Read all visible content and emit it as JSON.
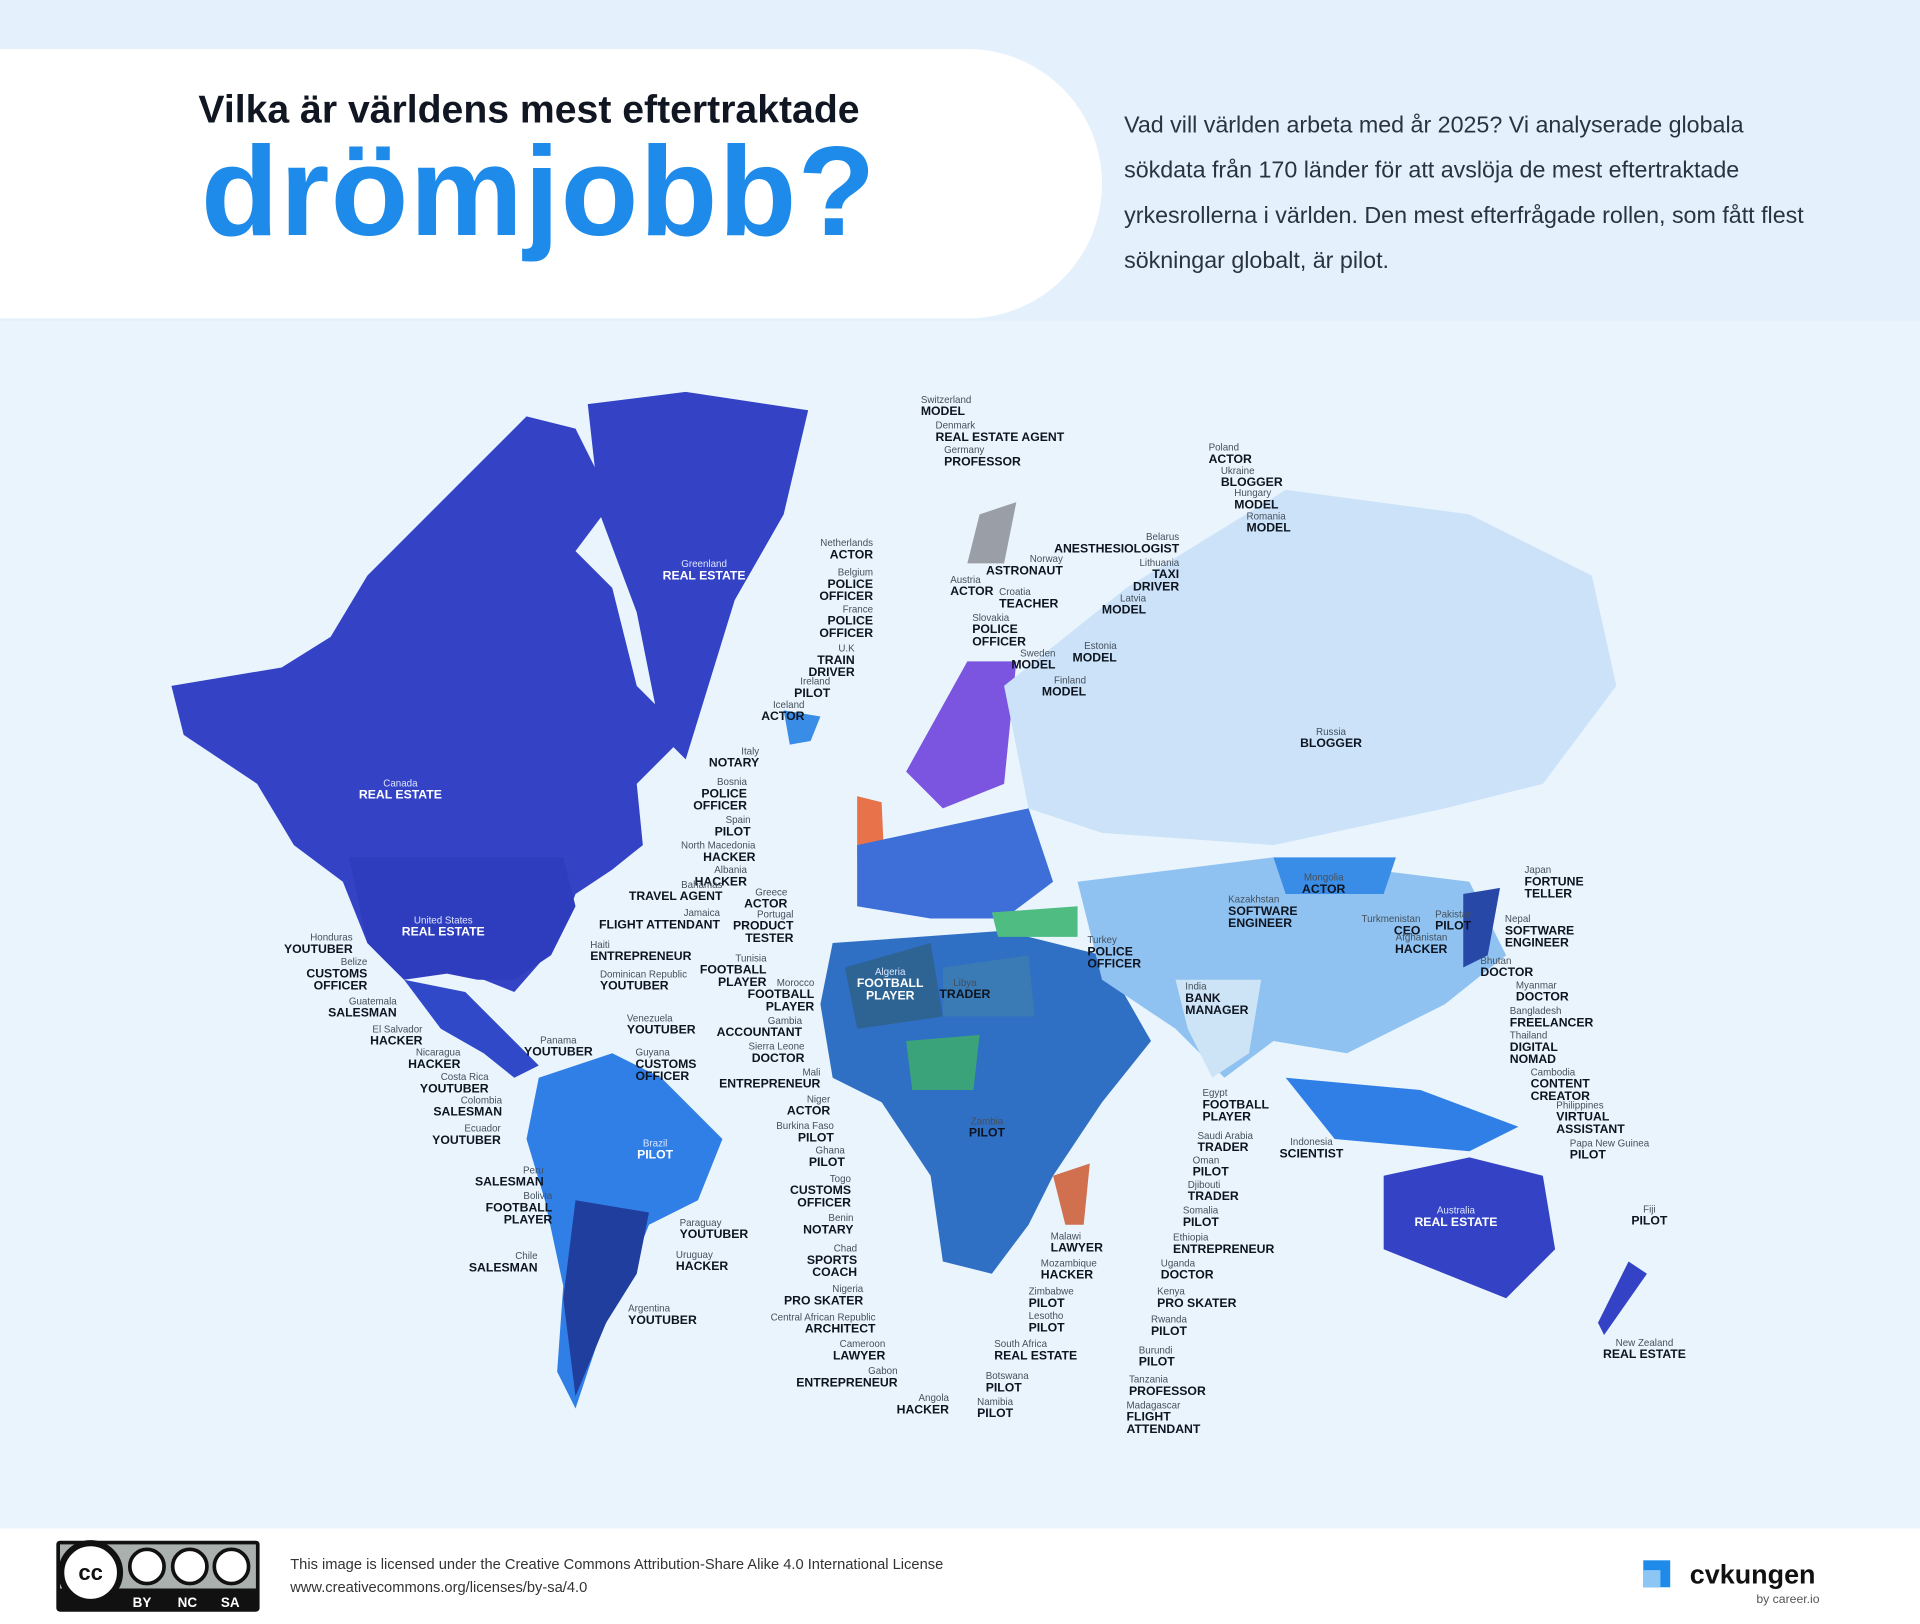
{
  "header": {
    "title": "Vilka är världens mest eftertraktade",
    "highlight": "drömjobb?",
    "description": [
      "Vad vill världen arbeta med år 2025? Vi analyserade globala",
      "sökdata från 170 länder för att avslöja de mest eftertraktade",
      "yrkesrollerna i världen. Den mest efterfrågade rollen, som fått flest",
      "sökningar globalt, är pilot."
    ]
  },
  "map": {
    "labels": [
      {
        "country": "Switzerland",
        "job": "MODEL"
      },
      {
        "country": "Denmark",
        "job": "REAL ESTATE AGENT"
      },
      {
        "country": "Germany",
        "job": "PROFESSOR"
      },
      {
        "country": "Netherlands",
        "job": "ACTOR"
      },
      {
        "country": "Belgium",
        "job": "POLICE OFFICER"
      },
      {
        "country": "France",
        "job": "POLICE OFFICER"
      },
      {
        "country": "U.K",
        "job": "TRAIN DRIVER"
      },
      {
        "country": "Ireland",
        "job": "PILOT"
      },
      {
        "country": "Iceland",
        "job": "ACTOR"
      },
      {
        "country": "Italy",
        "job": "NOTARY"
      },
      {
        "country": "Bosnia",
        "job": "POLICE OFFICER"
      },
      {
        "country": "Spain",
        "job": "PILOT"
      },
      {
        "country": "North Macedonia",
        "job": "HACKER"
      },
      {
        "country": "Albania",
        "job": "HACKER"
      },
      {
        "country": "Greece",
        "job": "ACTOR"
      },
      {
        "country": "Portugal",
        "job": "PRODUCT TESTER"
      },
      {
        "country": "Tunisia",
        "job": "FOOTBALL PLAYER"
      },
      {
        "country": "Morocco",
        "job": "FOOTBALL PLAYER"
      },
      {
        "country": "Algeria",
        "job": "FOOTBALL PLAYER"
      },
      {
        "country": "Libya",
        "job": "TRADER"
      },
      {
        "country": "Gambia",
        "job": "ACCOUNTANT"
      },
      {
        "country": "Sierra Leone",
        "job": "DOCTOR"
      },
      {
        "country": "Mali",
        "job": "ENTREPRENEUR"
      },
      {
        "country": "Niger",
        "job": "ACTOR"
      },
      {
        "country": "Burkina Faso",
        "job": "PILOT"
      },
      {
        "country": "Ghana",
        "job": "PILOT"
      },
      {
        "country": "Togo",
        "job": "CUSTOMS OFFICER"
      },
      {
        "country": "Benin",
        "job": "NOTARY"
      },
      {
        "country": "Chad",
        "job": "SPORTS COACH"
      },
      {
        "country": "Nigeria",
        "job": "PRO SKATER"
      },
      {
        "country": "Central African Republic",
        "job": "ARCHITECT"
      },
      {
        "country": "Cameroon",
        "job": "LAWYER"
      },
      {
        "country": "Gabon",
        "job": "ENTREPRENEUR"
      },
      {
        "country": "Angola",
        "job": "HACKER"
      },
      {
        "country": "Namibia",
        "job": "PILOT"
      },
      {
        "country": "Botswana",
        "job": "PILOT"
      },
      {
        "country": "South Africa",
        "job": "REAL ESTATE"
      },
      {
        "country": "Zambia",
        "job": "PILOT"
      },
      {
        "country": "Malawi",
        "job": "LAWYER"
      },
      {
        "country": "Mozambique",
        "job": "HACKER"
      },
      {
        "country": "Zimbabwe",
        "job": "PILOT"
      },
      {
        "country": "Lesotho",
        "job": "PILOT"
      },
      {
        "country": "Madagascar",
        "job": "FLIGHT ATTENDANT"
      },
      {
        "country": "Tanzania",
        "job": "PROFESSOR"
      },
      {
        "country": "Burundi",
        "job": "PILOT"
      },
      {
        "country": "Rwanda",
        "job": "PILOT"
      },
      {
        "country": "Kenya",
        "job": "PRO SKATER"
      },
      {
        "country": "Uganda",
        "job": "DOCTOR"
      },
      {
        "country": "Ethiopia",
        "job": "ENTREPRENEUR"
      },
      {
        "country": "Somalia",
        "job": "PILOT"
      },
      {
        "country": "Djibouti",
        "job": "TRADER"
      },
      {
        "country": "Oman",
        "job": "PILOT"
      },
      {
        "country": "Saudi Arabia",
        "job": "TRADER"
      },
      {
        "country": "Egypt",
        "job": "FOOTBALL PLAYER"
      },
      {
        "country": "Turkey",
        "job": "POLICE OFFICER"
      },
      {
        "country": "Poland",
        "job": "ACTOR"
      },
      {
        "country": "Ukraine",
        "job": "BLOGGER"
      },
      {
        "country": "Hungary",
        "job": "MODEL"
      },
      {
        "country": "Romania",
        "job": "MODEL"
      },
      {
        "country": "Belarus",
        "job": "ANESTHESIOLOGIST"
      },
      {
        "country": "Norway",
        "job": "ASTRONAUT"
      },
      {
        "country": "Lithuania",
        "job": "TAXI DRIVER"
      },
      {
        "country": "Austria",
        "job": "ACTOR"
      },
      {
        "country": "Croatia",
        "job": "TEACHER"
      },
      {
        "country": "Latvia",
        "job": "MODEL"
      },
      {
        "country": "Slovakia",
        "job": "POLICE OFFICER"
      },
      {
        "country": "Estonia",
        "job": "MODEL"
      },
      {
        "country": "Sweden",
        "job": "MODEL"
      },
      {
        "country": "Finland",
        "job": "MODEL"
      },
      {
        "country": "Greenland",
        "job": "REAL ESTATE"
      },
      {
        "country": "Canada",
        "job": "REAL ESTATE"
      },
      {
        "country": "United States",
        "job": "REAL ESTATE"
      },
      {
        "country": "Russia",
        "job": "BLOGGER"
      },
      {
        "country": "Mongolia",
        "job": "ACTOR"
      },
      {
        "country": "Kazakhstan",
        "job": "SOFTWARE ENGINEER"
      },
      {
        "country": "Turkmenistan",
        "job": "CEO"
      },
      {
        "country": "Afghanistan",
        "job": "HACKER"
      },
      {
        "country": "Pakistan",
        "job": "PILOT"
      },
      {
        "country": "Nepal",
        "job": "SOFTWARE ENGINEER"
      },
      {
        "country": "Japan",
        "job": "FORTUNE TELLER"
      },
      {
        "country": "Bhutan",
        "job": "DOCTOR"
      },
      {
        "country": "India",
        "job": "BANK MANAGER"
      },
      {
        "country": "Myanmar",
        "job": "DOCTOR"
      },
      {
        "country": "Bangladesh",
        "job": "FREELANCER"
      },
      {
        "country": "Thailand",
        "job": "DIGITAL NOMAD"
      },
      {
        "country": "Cambodia",
        "job": "CONTENT CREATOR"
      },
      {
        "country": "Philippines",
        "job": "VIRTUAL ASSISTANT"
      },
      {
        "country": "Indonesia",
        "job": "SCIENTIST"
      },
      {
        "country": "Papa New Guinea",
        "job": "PILOT"
      },
      {
        "country": "Australia",
        "job": "REAL ESTATE"
      },
      {
        "country": "Fiji",
        "job": "PILOT"
      },
      {
        "country": "New Zealand",
        "job": "REAL ESTATE"
      },
      {
        "country": "Bahamas",
        "job": "TRAVEL AGENT"
      },
      {
        "country": "Jamaica",
        "job": "FLIGHT ATTENDANT"
      },
      {
        "country": "Haiti",
        "job": "ENTREPRENEUR"
      },
      {
        "country": "Dominican Republic",
        "job": "YOUTUBER"
      },
      {
        "country": "Honduras",
        "job": "YOUTUBER"
      },
      {
        "country": "Belize",
        "job": "CUSTOMS OFFICER"
      },
      {
        "country": "Guatemala",
        "job": "SALESMAN"
      },
      {
        "country": "El Salvador",
        "job": "HACKER"
      },
      {
        "country": "Panama",
        "job": "YOUTUBER"
      },
      {
        "country": "Nicaragua",
        "job": "HACKER"
      },
      {
        "country": "Costa Rica",
        "job": "YOUTUBER"
      },
      {
        "country": "Venezuela",
        "job": "YOUTUBER"
      },
      {
        "country": "Guyana",
        "job": "CUSTOMS OFFICER"
      },
      {
        "country": "Colombia",
        "job": "SALESMAN"
      },
      {
        "country": "Ecuador",
        "job": "YOUTUBER"
      },
      {
        "country": "Brazil",
        "job": "PILOT"
      },
      {
        "country": "Peru",
        "job": "SALESMAN"
      },
      {
        "country": "Bolivia",
        "job": "FOOTBALL PLAYER"
      },
      {
        "country": "Paraguay",
        "job": "YOUTUBER"
      },
      {
        "country": "Chile",
        "job": "SALESMAN"
      },
      {
        "country": "Uruguay",
        "job": "HACKER"
      },
      {
        "country": "Argentina",
        "job": "YOUTUBER"
      }
    ]
  },
  "footer": {
    "license": [
      "This image is licensed under the Creative Commons Attribution-Share Alike 4.0 International License",
      "www.creativecommons.org/licenses/by-sa/4.0"
    ],
    "cc_badges": [
      "BY",
      "NC",
      "SA"
    ],
    "brand": "cvkungen",
    "brand_sub": "by career.io"
  }
}
